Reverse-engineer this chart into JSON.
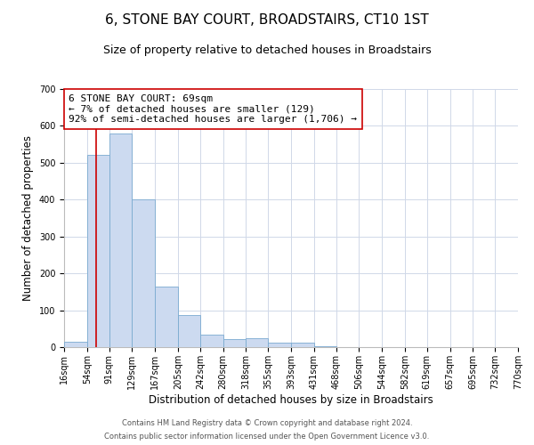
{
  "title": "6, STONE BAY COURT, BROADSTAIRS, CT10 1ST",
  "subtitle": "Size of property relative to detached houses in Broadstairs",
  "xlabel": "Distribution of detached houses by size in Broadstairs",
  "ylabel": "Number of detached properties",
  "bin_edges": [
    16,
    54,
    91,
    129,
    167,
    205,
    242,
    280,
    318,
    355,
    393,
    431,
    468,
    506,
    544,
    582,
    619,
    657,
    695,
    732,
    770
  ],
  "bar_heights": [
    15,
    522,
    580,
    400,
    165,
    87,
    35,
    22,
    25,
    13,
    13,
    3,
    0,
    0,
    0,
    0,
    0,
    0,
    0,
    0
  ],
  "bar_color": "#ccdaf0",
  "bar_edge_color": "#7aaad0",
  "vline_x": 69,
  "vline_color": "#cc0000",
  "ylim": [
    0,
    700
  ],
  "yticks": [
    0,
    100,
    200,
    300,
    400,
    500,
    600,
    700
  ],
  "annotation_title": "6 STONE BAY COURT: 69sqm",
  "annotation_line1": "← 7% of detached houses are smaller (129)",
  "annotation_line2": "92% of semi-detached houses are larger (1,706) →",
  "annotation_box_facecolor": "#ffffff",
  "annotation_box_edgecolor": "#cc0000",
  "footer_line1": "Contains HM Land Registry data © Crown copyright and database right 2024.",
  "footer_line2": "Contains public sector information licensed under the Open Government Licence v3.0.",
  "title_fontsize": 11,
  "subtitle_fontsize": 9,
  "axis_label_fontsize": 8.5,
  "tick_fontsize": 7,
  "annotation_fontsize": 8,
  "footer_fontsize": 6,
  "background_color": "#ffffff",
  "grid_color": "#d0d8e8"
}
